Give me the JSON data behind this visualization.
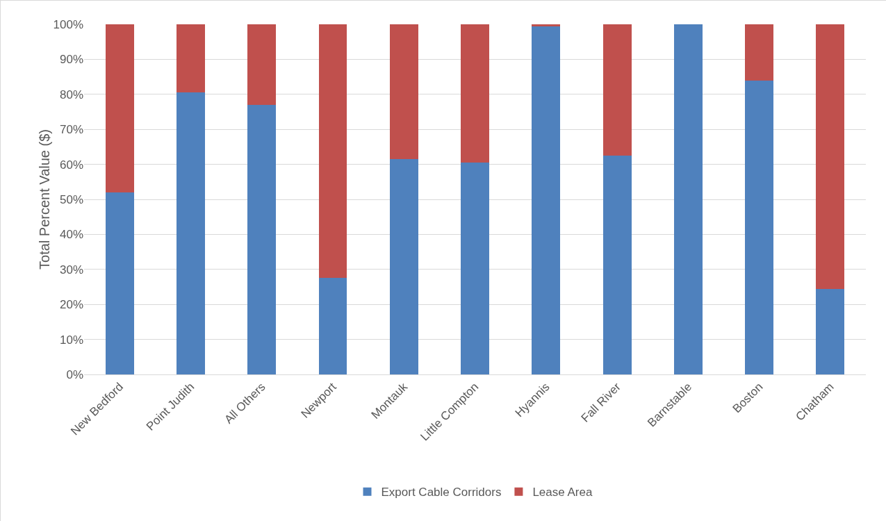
{
  "chart_data": {
    "type": "bar",
    "stacked": true,
    "ylabel": "Total Percent Value ($)",
    "categories": [
      "New Bedford",
      "Point Judith",
      "All Others",
      "Newport",
      "Montauk",
      "Little Compton",
      "Hyannis",
      "Fall River",
      "Barnstable",
      "Boston",
      "Chatham"
    ],
    "series": [
      {
        "name": "Export Cable Corridors",
        "color": "#4f81bd",
        "values": [
          52,
          80.5,
          77,
          27.5,
          61.5,
          60.5,
          99.5,
          62.5,
          100,
          84,
          24.5
        ]
      },
      {
        "name": "Lease Area",
        "color": "#c0504d",
        "values": [
          48,
          19.5,
          23,
          72.5,
          38.5,
          39.5,
          0.5,
          37.5,
          0,
          16,
          75.5
        ]
      }
    ],
    "ylim": [
      0,
      100
    ],
    "yticks": [
      {
        "value": 0,
        "label": "0%"
      },
      {
        "value": 10,
        "label": "10%"
      },
      {
        "value": 20,
        "label": "20%"
      },
      {
        "value": 30,
        "label": "30%"
      },
      {
        "value": 40,
        "label": "40%"
      },
      {
        "value": 50,
        "label": "50%"
      },
      {
        "value": 60,
        "label": "60%"
      },
      {
        "value": 70,
        "label": "70%"
      },
      {
        "value": 80,
        "label": "80%"
      },
      {
        "value": 90,
        "label": "90%"
      },
      {
        "value": 100,
        "label": "100%"
      }
    ],
    "grid": "y",
    "legend": "bottom"
  }
}
